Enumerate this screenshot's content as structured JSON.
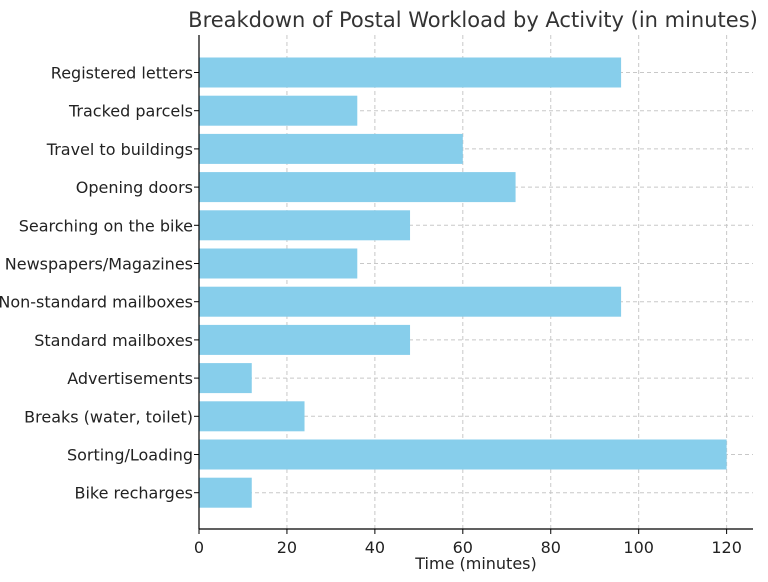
{
  "chart_data": {
    "type": "bar",
    "orientation": "horizontal",
    "title": "Breakdown of Postal Workload by Activity (in minutes)",
    "xlabel": "Time (minutes)",
    "ylabel": "",
    "xlim": [
      0,
      126
    ],
    "xticks": [
      0,
      20,
      40,
      60,
      80,
      100,
      120
    ],
    "grid": true,
    "colors": {
      "bar": "#87CEEB"
    },
    "categories": [
      "Registered letters",
      "Tracked parcels",
      "Travel to buildings",
      "Opening doors",
      "Searching on the bike",
      "Newspapers/Magazines",
      "Non-standard mailboxes",
      "Standard mailboxes",
      "Advertisements",
      "Breaks (water, toilet)",
      "Sorting/Loading",
      "Bike recharges"
    ],
    "values": [
      96,
      36,
      60,
      72,
      48,
      36,
      96,
      48,
      12,
      24,
      120,
      12
    ]
  }
}
